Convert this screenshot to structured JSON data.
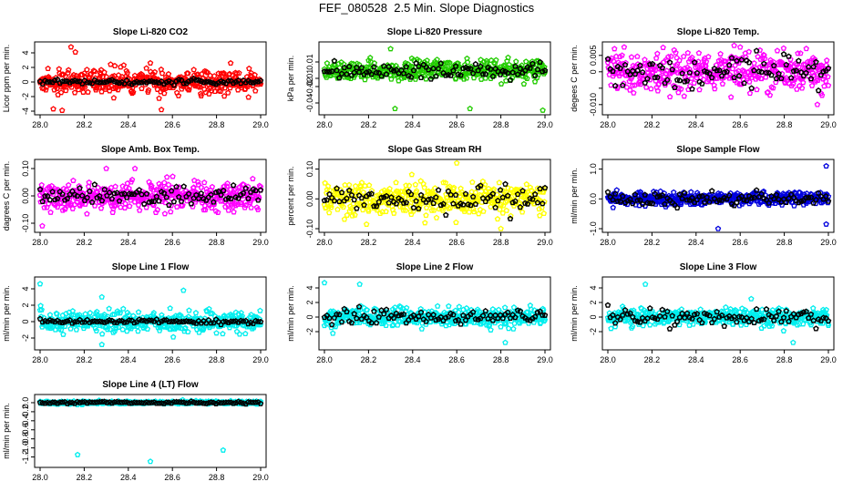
{
  "figure_title": "FEF_080528  2.5 Min. Slope Diagnostics",
  "chart_data": [
    {
      "type": "scatter",
      "title": "Slope Li-820 CO2",
      "ylabel": "Licor ppm per min.",
      "xlim": [
        28,
        29
      ],
      "ylim": [
        -4,
        5
      ],
      "xticks": [
        "28.0",
        "28.2",
        "28.4",
        "28.6",
        "28.8",
        "29.0"
      ],
      "yticks": [
        -4,
        -2,
        0,
        2,
        4
      ],
      "color": "#ff0000",
      "black_spread": 0.25,
      "color_spread": 1.3,
      "seed": 11,
      "outliers": [
        [
          28.14,
          4.8
        ],
        [
          28.16,
          4.1
        ],
        [
          28.06,
          -3.7
        ],
        [
          28.1,
          -3.9
        ],
        [
          28.55,
          -3.8
        ],
        [
          28.5,
          2.6
        ]
      ]
    },
    {
      "type": "scatter",
      "title": "Slope Li-820 Pressure",
      "ylabel": "kPa per min.",
      "xlim": [
        28,
        29
      ],
      "ylim": [
        -0.05,
        0.03
      ],
      "xticks": [
        "28.0",
        "28.2",
        "28.4",
        "28.6",
        "28.8",
        "29.0"
      ],
      "yticks": [
        -0.04,
        -0.02,
        -0.01,
        0.01
      ],
      "ytick_labels": [
        "-0.04",
        "-0.02",
        "-0.01",
        "0.01"
      ],
      "color": "#22cc00",
      "black_spread": 0.009,
      "color_spread": 0.01,
      "seed": 23,
      "outliers": [
        [
          28.32,
          -0.047
        ],
        [
          28.66,
          -0.047
        ],
        [
          28.99,
          -0.049
        ],
        [
          28.3,
          0.026
        ]
      ]
    },
    {
      "type": "scatter",
      "title": "Slope Li-820 Temp.",
      "ylabel": "degees C per min.",
      "xlim": [
        28,
        29
      ],
      "ylim": [
        -0.012,
        0.008
      ],
      "xticks": [
        "28.0",
        "28.2",
        "28.4",
        "28.6",
        "28.8",
        "29.0"
      ],
      "yticks": [
        -0.01,
        -0.005,
        0,
        0.005
      ],
      "ytick_labels": [
        "-0.010",
        "",
        "0",
        "0.005"
      ],
      "color": "#ff00ff",
      "black_spread": 0.004,
      "color_spread": 0.005,
      "seed": 37,
      "outliers": [
        [
          28.95,
          -0.01
        ],
        [
          28.6,
          0.0075
        ],
        [
          28.03,
          0.007
        ]
      ]
    },
    {
      "type": "scatter",
      "title": "Slope Amb. Box Temp.",
      "ylabel": "dagrees C per min.",
      "xlim": [
        28,
        29
      ],
      "ylim": [
        -0.12,
        0.12
      ],
      "xticks": [
        "28.0",
        "28.2",
        "28.4",
        "28.6",
        "28.8",
        "29.0"
      ],
      "yticks": [
        -0.1,
        0,
        0.1
      ],
      "ytick_labels": [
        "-0.10",
        "0.00",
        "0.10"
      ],
      "color": "#ff00ff",
      "black_spread": 0.03,
      "color_spread": 0.045,
      "seed": 41,
      "outliers": [
        [
          28.01,
          -0.11
        ],
        [
          28.3,
          0.1
        ],
        [
          28.43,
          0.1
        ]
      ]
    },
    {
      "type": "scatter",
      "title": "Slope Gas Stream RH",
      "ylabel": "percent per min.",
      "xlim": [
        28,
        29
      ],
      "ylim": [
        -0.1,
        0.12
      ],
      "xticks": [
        "28.0",
        "28.2",
        "28.4",
        "28.6",
        "28.8",
        "29.0"
      ],
      "yticks": [
        -0.1,
        0,
        0.1
      ],
      "ytick_labels": [
        "-0.10",
        "0.00",
        "0.10"
      ],
      "color": "#ffff00",
      "black_spread": 0.035,
      "color_spread": 0.045,
      "seed": 53,
      "outliers": [
        [
          28.6,
          0.12
        ],
        [
          28.8,
          -0.1
        ]
      ]
    },
    {
      "type": "scatter",
      "title": "Slope Sample Flow",
      "ylabel": "ml/min per min.",
      "xlim": [
        28,
        29
      ],
      "ylim": [
        -1,
        1.2
      ],
      "xticks": [
        "28.0",
        "28.2",
        "28.4",
        "28.6",
        "28.8",
        "29.0"
      ],
      "yticks": [
        -1,
        0,
        1
      ],
      "ytick_labels": [
        "-1.0",
        "0.0",
        "1.0"
      ],
      "color": "#0000dd",
      "black_spread": 0.17,
      "color_spread": 0.17,
      "seed": 67,
      "outliers": [
        [
          28.99,
          1.1
        ],
        [
          28.99,
          -0.85
        ],
        [
          28.5,
          -1.0
        ]
      ]
    },
    {
      "type": "scatter",
      "title": "Slope Line 1 Flow",
      "ylabel": "ml/min per min.",
      "xlim": [
        28,
        29
      ],
      "ylim": [
        -3,
        5
      ],
      "xticks": [
        "28.0",
        "28.2",
        "28.4",
        "28.6",
        "28.8",
        "29.0"
      ],
      "yticks": [
        -2,
        0,
        2,
        4
      ],
      "color": "#00eeee",
      "black_spread": 0.2,
      "color_spread": 1.0,
      "seed": 71,
      "outliers": [
        [
          28.0,
          4.6
        ],
        [
          28.28,
          3.0
        ],
        [
          28.65,
          3.8
        ],
        [
          28.28,
          -2.8
        ]
      ]
    },
    {
      "type": "scatter",
      "title": "Slope Line 2 Flow",
      "ylabel": "ml/min per min.",
      "xlim": [
        28,
        29
      ],
      "ylim": [
        -4,
        5
      ],
      "xticks": [
        "28.0",
        "28.2",
        "28.4",
        "28.6",
        "28.8",
        "29.0"
      ],
      "yticks": [
        -2,
        0,
        2,
        4
      ],
      "color": "#00eeee",
      "black_spread": 0.9,
      "color_spread": 1.0,
      "seed": 83,
      "outliers": [
        [
          28.0,
          4.7
        ],
        [
          28.16,
          4.5
        ],
        [
          28.82,
          -3.5
        ]
      ]
    },
    {
      "type": "scatter",
      "title": "Slope Line 3 Flow",
      "ylabel": "ml/min per min.",
      "xlim": [
        28,
        29
      ],
      "ylim": [
        -4,
        5
      ],
      "xticks": [
        "28.0",
        "28.2",
        "28.4",
        "28.6",
        "28.8",
        "29.0"
      ],
      "yticks": [
        -2,
        0,
        2,
        4
      ],
      "color": "#00eeee",
      "black_spread": 0.9,
      "color_spread": 1.0,
      "seed": 97,
      "outliers": [
        [
          28.17,
          4.5
        ],
        [
          28.65,
          2.5
        ],
        [
          28.84,
          -3.5
        ]
      ]
    },
    {
      "type": "scatter",
      "title": "Slope Line 4 (LT) Flow",
      "ylabel": "ml/min per min.",
      "xlim": [
        28,
        29
      ],
      "ylim": [
        -1.35,
        0.1
      ],
      "xticks": [
        "28.0",
        "28.2",
        "28.4",
        "28.6",
        "28.8",
        "29.0"
      ],
      "yticks": [
        -1.2,
        -1,
        -0.8,
        -0.6,
        -0.4,
        -0.2,
        0
      ],
      "ytick_labels": [
        "-1.2",
        "-1.0",
        "-0.8",
        "-0.6",
        "-0.4",
        "-0.2",
        "0.0"
      ],
      "color": "#00eeee",
      "black_spread": 0.02,
      "color_spread": 0.025,
      "seed": 101,
      "outliers": [
        [
          28.17,
          -1.15
        ],
        [
          28.5,
          -1.3
        ],
        [
          28.83,
          -1.05
        ]
      ]
    }
  ]
}
